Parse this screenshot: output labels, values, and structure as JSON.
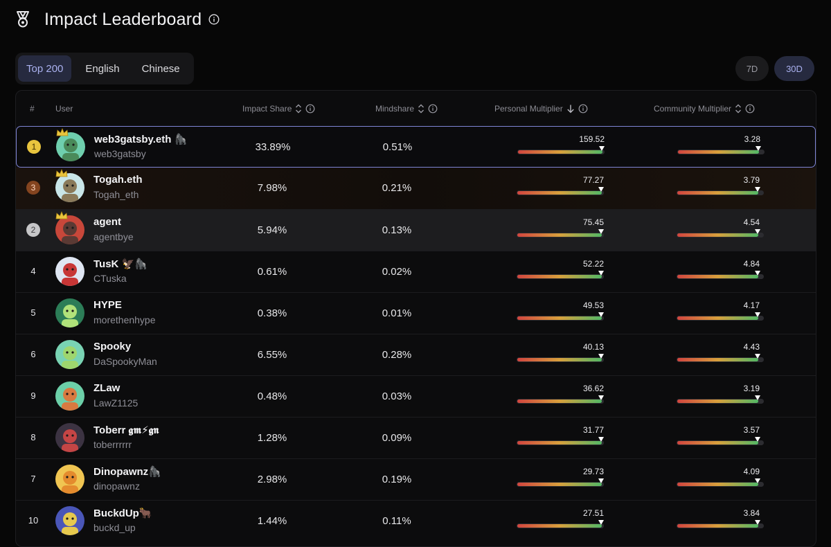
{
  "header": {
    "title": "Impact Leaderboard"
  },
  "lang_tabs": [
    {
      "label": "Top 200",
      "active": true
    },
    {
      "label": "English",
      "active": false
    },
    {
      "label": "Chinese",
      "active": false
    }
  ],
  "period_tabs": [
    {
      "label": "7D",
      "active": false
    },
    {
      "label": "30D",
      "active": true
    }
  ],
  "table": {
    "columns": {
      "rank": "#",
      "user": "User",
      "impact_share": "Impact Share",
      "mindshare": "Mindshare",
      "personal_multiplier": "Personal Multiplier",
      "community_multiplier": "Community Multiplier"
    },
    "rows": [
      {
        "rank": "1",
        "name": "web3gatsby.eth 🦍",
        "handle": "web3gatsby",
        "impact_share": "33.89%",
        "mindshare": "0.51%",
        "personal_multiplier": "159.52",
        "community_multiplier": "3.28",
        "personal_level": 0.98,
        "community_level": 0.94
      },
      {
        "rank": "3",
        "name": "Togah.eth",
        "handle": "Togah_eth",
        "impact_share": "7.98%",
        "mindshare": "0.21%",
        "personal_multiplier": "77.27",
        "community_multiplier": "3.79",
        "personal_level": 0.98,
        "community_level": 0.94
      },
      {
        "rank": "2",
        "name": "agent",
        "handle": "agentbye",
        "impact_share": "5.94%",
        "mindshare": "0.13%",
        "personal_multiplier": "75.45",
        "community_multiplier": "4.54",
        "personal_level": 0.98,
        "community_level": 0.94
      },
      {
        "rank": "4",
        "name": "TusK 🦅🦍",
        "handle": "CTuska",
        "impact_share": "0.61%",
        "mindshare": "0.02%",
        "personal_multiplier": "52.22",
        "community_multiplier": "4.84",
        "personal_level": 0.98,
        "community_level": 0.94
      },
      {
        "rank": "5",
        "name": "HYPE",
        "handle": "morethenhype",
        "impact_share": "0.38%",
        "mindshare": "0.01%",
        "personal_multiplier": "49.53",
        "community_multiplier": "4.17",
        "personal_level": 0.98,
        "community_level": 0.94
      },
      {
        "rank": "6",
        "name": "Spooky",
        "handle": "DaSpookyMan",
        "impact_share": "6.55%",
        "mindshare": "0.28%",
        "personal_multiplier": "40.13",
        "community_multiplier": "4.43",
        "personal_level": 0.98,
        "community_level": 0.94
      },
      {
        "rank": "9",
        "name": "ZLaw",
        "handle": "LawZ1125",
        "impact_share": "0.48%",
        "mindshare": "0.03%",
        "personal_multiplier": "36.62",
        "community_multiplier": "3.19",
        "personal_level": 0.98,
        "community_level": 0.94
      },
      {
        "rank": "8",
        "name": "Toberr 𝖌𝖒⚡𝖌𝖓",
        "handle": "toberrrrrr",
        "impact_share": "1.28%",
        "mindshare": "0.09%",
        "personal_multiplier": "31.77",
        "community_multiplier": "3.57",
        "personal_level": 0.98,
        "community_level": 0.94
      },
      {
        "rank": "7",
        "name": "Dinopawnz🦍",
        "handle": "dinopawnz",
        "impact_share": "2.98%",
        "mindshare": "0.19%",
        "personal_multiplier": "29.73",
        "community_multiplier": "4.09",
        "personal_level": 0.98,
        "community_level": 0.94
      },
      {
        "rank": "10",
        "name": "BuckdUp🐂",
        "handle": "buckd_up",
        "impact_share": "1.44%",
        "mindshare": "0.11%",
        "personal_multiplier": "27.51",
        "community_multiplier": "3.84",
        "personal_level": 0.98,
        "community_level": 0.94
      }
    ]
  },
  "colors": {
    "accent": "#aab1ef",
    "gold": "#e9c53e",
    "bronze": "#84441f",
    "silver": "#c6c6c8",
    "highlight_border": "#7f85d6"
  }
}
